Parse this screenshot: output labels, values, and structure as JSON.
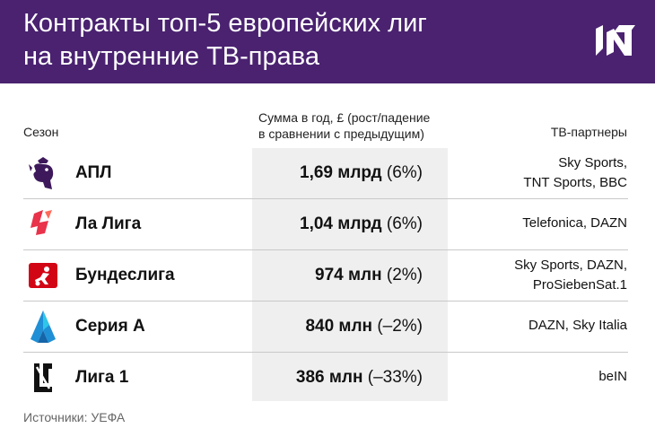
{
  "header": {
    "title_line1": "Контракты топ-5 европейских лиг",
    "title_line2": "на внутренние ТВ-права",
    "background_color": "#4a2270",
    "logo_icon": "publisher-logo-icon"
  },
  "table": {
    "columns": {
      "season": "Сезон",
      "sum_line1": "Сумма в год, £ (рост/падение",
      "sum_line2": "в сравнении с предыдущим)",
      "partners": "ТВ-партнеры"
    },
    "rows": [
      {
        "league": "АПЛ",
        "icon": "premier-league-logo-icon",
        "amount": "1,69 млрд",
        "change": "(6%)",
        "partners_line1": "Sky Sports,",
        "partners_line2": "TNT Sports, BBC"
      },
      {
        "league": "Ла Лига",
        "icon": "laliga-logo-icon",
        "amount": "1,04 млрд",
        "change": "(6%)",
        "partners_line1": "Telefonica, DAZN",
        "partners_line2": ""
      },
      {
        "league": "Бундеслига",
        "icon": "bundesliga-logo-icon",
        "amount": "974 млн",
        "change": "(2%)",
        "partners_line1": "Sky Sports, DAZN,",
        "partners_line2": "ProSiebenSat.1"
      },
      {
        "league": "Серия А",
        "icon": "serie-a-logo-icon",
        "amount": "840 млн",
        "change": "(–2%)",
        "partners_line1": "DAZN, Sky Italia",
        "partners_line2": ""
      },
      {
        "league": "Лига 1",
        "icon": "ligue-1-logo-icon",
        "amount": "386 млн",
        "change": "(–33%)",
        "partners_line1": "beIN",
        "partners_line2": ""
      }
    ]
  },
  "footer": {
    "source": "Источники: УЕФА"
  }
}
